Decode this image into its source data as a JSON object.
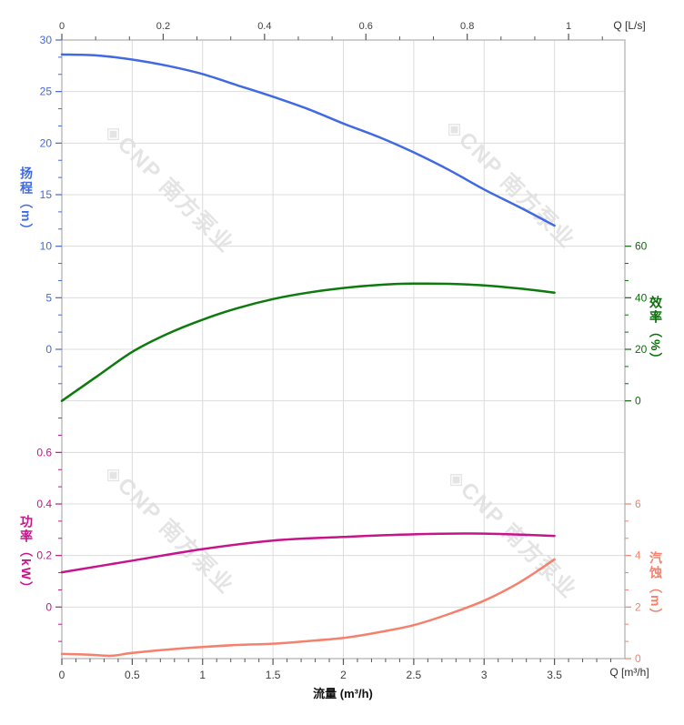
{
  "watermark": {
    "text": "◈CNP 南方泵业"
  },
  "axes": {
    "top": {
      "unit": "Q [L/s]",
      "ticks": [
        0,
        0.2,
        0.4,
        0.6,
        0.8,
        1
      ],
      "labels": [
        "0",
        "0.2",
        "0.4",
        "0.6",
        "0.8",
        "1"
      ],
      "color": "#3f3f3f"
    },
    "bottom": {
      "unit": "Q [m³/h]",
      "title": "流量 (m³/h)",
      "ticks": [
        0,
        0.5,
        1,
        1.5,
        2,
        2.5,
        3,
        3.5
      ],
      "labels": [
        "0",
        "0.5",
        "1",
        "1.5",
        "2",
        "2.5",
        "3",
        "3.5"
      ],
      "color": "#3f3f3f"
    },
    "head": {
      "title": "扬程（m）",
      "ticks": [
        30,
        25,
        20,
        15,
        10,
        5,
        0
      ],
      "labels": [
        "30",
        "25",
        "20",
        "15",
        "10",
        "5",
        "0"
      ],
      "color": "#4169e1"
    },
    "power": {
      "title": "功率（kW）",
      "ticks": [
        0.6,
        0.4,
        0.2,
        0
      ],
      "labels": [
        "0.6",
        "0.4",
        "0.2",
        "0"
      ],
      "color": "#c6158b"
    },
    "eff": {
      "title": "效率（%）",
      "ticks": [
        60,
        40,
        20,
        0
      ],
      "labels": [
        "60",
        "40",
        "20",
        "0"
      ],
      "color": "#0a6e0a"
    },
    "npsh": {
      "title": "汽蚀（m）",
      "ticks": [
        6,
        4,
        2,
        0
      ],
      "labels": [
        "6",
        "4",
        "2",
        "0"
      ],
      "color": "#f5806c"
    }
  },
  "chart_data": {
    "type": "line",
    "title": "",
    "x_unit_bottom": "m³/h",
    "x_unit_top": "L/s",
    "x_range_m3h": [
      0,
      4
    ],
    "grid": true,
    "axis_scales": {
      "head_m": {
        "top_value": 30,
        "per_gridline": 5
      },
      "eff_pct": {
        "zero_gridline_row": 7,
        "per_gridline": 20
      },
      "power_kw": {
        "zero_gridline_row": 11,
        "per_gridline": 0.2
      },
      "npsh_m": {
        "zero_gridline_row": 12,
        "per_gridline": 2
      }
    },
    "series": [
      {
        "name": "扬程",
        "unit": "m",
        "axis": "head",
        "color": "#4169e1",
        "x": [
          0,
          0.25,
          0.5,
          0.75,
          1,
          1.25,
          1.5,
          1.75,
          2,
          2.25,
          2.5,
          2.75,
          3,
          3.25,
          3.5
        ],
        "y": [
          28.6,
          28.5,
          28.1,
          27.5,
          26.7,
          25.6,
          24.5,
          23.3,
          21.9,
          20.6,
          19.1,
          17.4,
          15.5,
          13.8,
          12.0
        ]
      },
      {
        "name": "效率",
        "unit": "%",
        "axis": "eff",
        "color": "#0d7a0d",
        "x": [
          0,
          0.25,
          0.5,
          0.75,
          1,
          1.25,
          1.5,
          1.75,
          2,
          2.25,
          2.5,
          2.75,
          3,
          3.25,
          3.5
        ],
        "y": [
          0,
          9.5,
          19,
          26,
          31.5,
          36,
          39.5,
          42,
          43.8,
          45,
          45.5,
          45.4,
          44.8,
          43.6,
          42
        ]
      },
      {
        "name": "功率",
        "unit": "kW",
        "axis": "power",
        "color": "#c6158b",
        "x": [
          0,
          0.5,
          1,
          1.5,
          2,
          2.5,
          3,
          3.5
        ],
        "y": [
          0.135,
          0.18,
          0.225,
          0.258,
          0.272,
          0.282,
          0.285,
          0.276
        ]
      },
      {
        "name": "汽蚀",
        "unit": "m",
        "axis": "npsh",
        "color": "#f5806c",
        "x": [
          0,
          0.2,
          0.35,
          0.5,
          0.75,
          1,
          1.25,
          1.5,
          1.75,
          2,
          2.25,
          2.5,
          2.75,
          3,
          3.25,
          3.5
        ],
        "y": [
          0.18,
          0.15,
          0.11,
          0.22,
          0.35,
          0.45,
          0.53,
          0.58,
          0.68,
          0.8,
          1.02,
          1.3,
          1.73,
          2.25,
          2.95,
          3.85
        ]
      }
    ]
  }
}
